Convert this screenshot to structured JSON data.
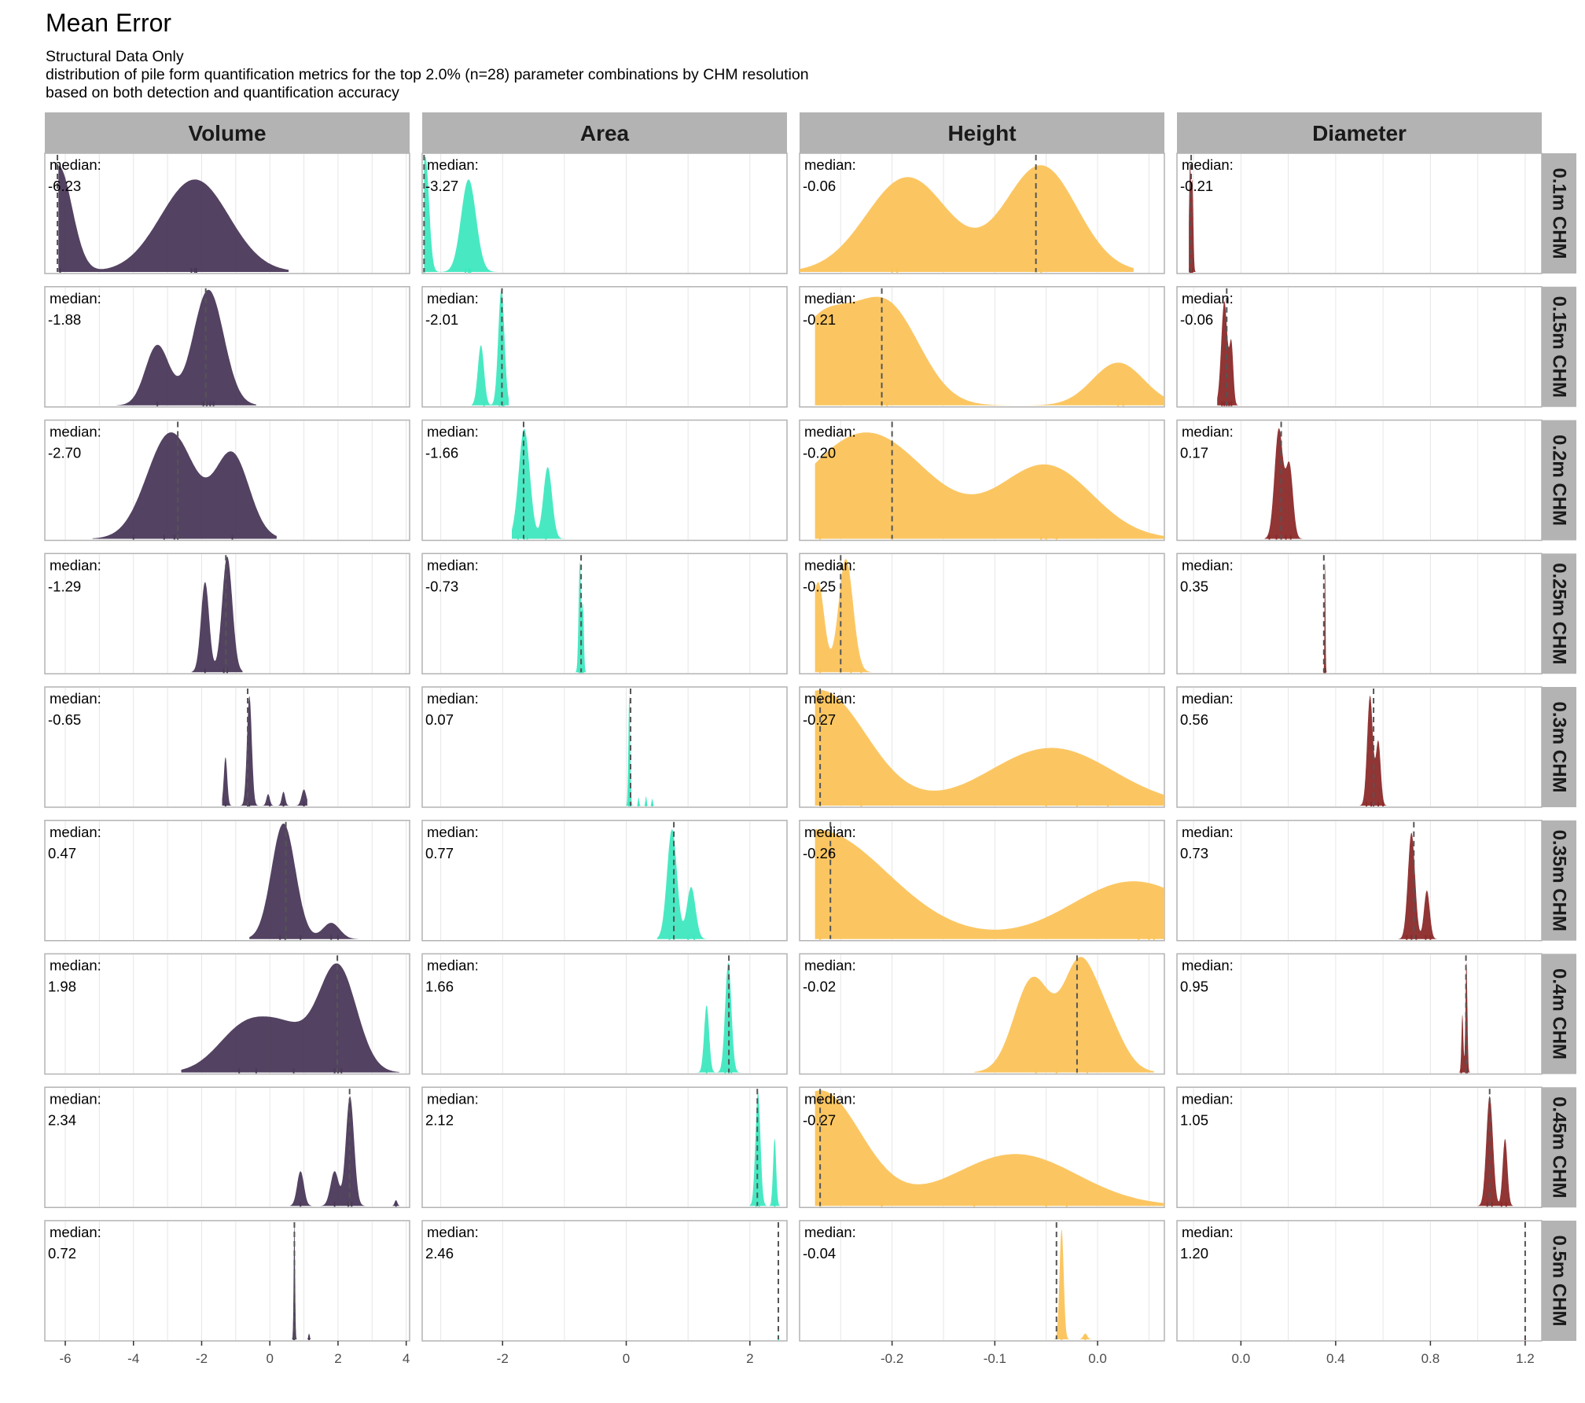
{
  "title": "Mean Error",
  "subtitle_lines": [
    "Structural Data Only",
    "distribution of pile form quantification metrics for the top 2.0% (n=28) parameter combinations by CHM resolution",
    "based on both detection and quantification accuracy"
  ],
  "median_prefix": "median:",
  "chart_data": {
    "type": "density-facet-grid",
    "columns": [
      {
        "name": "Volume",
        "color": "#4a3858",
        "xlim": [
          -6.6,
          4.1
        ],
        "ticks": [
          -6,
          -4,
          -2,
          0,
          2,
          4
        ],
        "tick_labels": [
          "-6",
          "-4",
          "-2",
          "0",
          "2",
          "4"
        ]
      },
      {
        "name": "Area",
        "color": "#3ee8bf",
        "xlim": [
          -3.3,
          2.6
        ],
        "ticks": [
          -2,
          0,
          2
        ],
        "tick_labels": [
          "-2",
          "0",
          "2"
        ]
      },
      {
        "name": "Height",
        "color": "#fbc35a",
        "xlim": [
          -0.29,
          0.065
        ],
        "ticks": [
          -0.2,
          -0.1,
          0.0
        ],
        "tick_labels": [
          "-0.2",
          "-0.1",
          "0.0"
        ]
      },
      {
        "name": "Diameter",
        "color": "#8b2a2a",
        "xlim": [
          -0.27,
          1.27
        ],
        "ticks": [
          0.0,
          0.4,
          0.8,
          1.2
        ],
        "tick_labels": [
          "0.0",
          "0.4",
          "0.8",
          "1.2"
        ]
      }
    ],
    "rows": [
      "0.1m CHM",
      "0.15m CHM",
      "0.2m CHM",
      "0.25m CHM",
      "0.3m CHM",
      "0.35m CHM",
      "0.4m CHM",
      "0.45m CHM",
      "0.5m CHM"
    ],
    "cells": [
      [
        {
          "median": -6.23,
          "median_label": "-6.23",
          "range": [
            -6.2,
            0.55
          ],
          "peaks": [
            [
              -6.2,
              0.4,
              0.92
            ],
            [
              -2.2,
              1.0,
              0.8
            ]
          ],
          "rug": [
            -6.15,
            -2.3,
            -2.2,
            -2.15
          ]
        },
        {
          "median": -3.27,
          "median_label": "-3.27",
          "range": [
            -3.27,
            -2.0
          ],
          "peaks": [
            [
              -3.25,
              0.06,
              1.0
            ],
            [
              -2.55,
              0.12,
              0.8
            ]
          ],
          "rug": [
            -3.27,
            -2.6,
            -2.55,
            -2.52
          ]
        },
        {
          "median": -0.06,
          "median_label": "-0.06",
          "range": [
            -0.29,
            0.035
          ],
          "peaks": [
            [
              -0.185,
              0.04,
              0.82
            ],
            [
              -0.055,
              0.035,
              0.92
            ]
          ],
          "rug": [
            -0.2,
            -0.195,
            -0.06,
            -0.055
          ]
        },
        {
          "median": -0.21,
          "median_label": "-0.21",
          "range": [
            -0.22,
            -0.19
          ],
          "peaks": [
            [
              -0.215,
              0.004,
              0.9
            ],
            [
              -0.205,
              0.004,
              0.75
            ]
          ],
          "rug": [
            -0.215,
            -0.21,
            -0.205
          ]
        }
      ],
      [
        {
          "median": -1.88,
          "median_label": "-1.88",
          "range": [
            -4.5,
            -0.4
          ],
          "peaks": [
            [
              -3.3,
              0.35,
              0.52
            ],
            [
              -1.8,
              0.45,
              1.0
            ]
          ],
          "rug": [
            -3.3,
            -1.95,
            -1.85,
            -1.75,
            -1.65
          ]
        },
        {
          "median": -2.01,
          "median_label": "-2.01",
          "range": [
            -2.5,
            -1.9
          ],
          "peaks": [
            [
              -2.35,
              0.05,
              0.52
            ],
            [
              -2.02,
              0.05,
              1.0
            ]
          ],
          "rug": [
            -2.3,
            -2.05,
            -2.0,
            -1.98
          ]
        },
        {
          "median": -0.21,
          "median_label": "-0.21",
          "range": [
            -0.275,
            0.065
          ],
          "peaks": [
            [
              -0.27,
              0.03,
              0.7
            ],
            [
              -0.205,
              0.032,
              0.85
            ],
            [
              0.02,
              0.025,
              0.37
            ]
          ],
          "rug": [
            -0.21,
            -0.205,
            0.02,
            0.025
          ]
        },
        {
          "median": -0.06,
          "median_label": "-0.06",
          "range": [
            -0.1,
            0.0
          ],
          "peaks": [
            [
              -0.07,
              0.013,
              0.9
            ],
            [
              -0.04,
              0.008,
              0.5
            ]
          ],
          "rug": [
            -0.08,
            -0.07,
            -0.06,
            -0.05,
            -0.04
          ]
        }
      ],
      [
        {
          "median": -2.7,
          "median_label": "-2.70",
          "range": [
            -5.2,
            0.2
          ],
          "peaks": [
            [
              -2.9,
              0.7,
              0.92
            ],
            [
              -1.1,
              0.5,
              0.72
            ]
          ],
          "rug": [
            -4.0,
            -3.1,
            -2.8,
            -2.7,
            -1.1
          ]
        },
        {
          "median": -1.66,
          "median_label": "-1.66",
          "range": [
            -1.85,
            -1.0
          ],
          "peaks": [
            [
              -1.65,
              0.09,
              0.95
            ],
            [
              -1.27,
              0.07,
              0.62
            ]
          ],
          "rug": [
            -1.75,
            -1.65,
            -1.6,
            -1.3
          ]
        },
        {
          "median": -0.2,
          "median_label": "-0.20",
          "range": [
            -0.275,
            0.065
          ],
          "peaks": [
            [
              -0.225,
              0.06,
              0.92
            ],
            [
              -0.05,
              0.045,
              0.63
            ]
          ],
          "rug": [
            -0.27,
            -0.2,
            -0.055,
            -0.05,
            -0.04
          ]
        },
        {
          "median": 0.17,
          "median_label": "0.17",
          "range": [
            0.1,
            0.26
          ],
          "peaks": [
            [
              0.16,
              0.018,
              0.95
            ],
            [
              0.205,
              0.015,
              0.62
            ]
          ],
          "rug": [
            0.12,
            0.15,
            0.17,
            0.19,
            0.21
          ]
        }
      ],
      [
        {
          "median": -1.29,
          "median_label": "-1.29",
          "range": [
            -2.3,
            -0.8
          ],
          "peaks": [
            [
              -1.9,
              0.12,
              0.78
            ],
            [
              -1.25,
              0.15,
              1.0
            ]
          ],
          "rug": [
            -1.9,
            -1.35,
            -1.25
          ]
        },
        {
          "median": -0.73,
          "median_label": "-0.73",
          "range": [
            -0.83,
            -0.65
          ],
          "peaks": [
            [
              -0.75,
              0.02,
              0.95
            ],
            [
              -0.7,
              0.015,
              0.55
            ]
          ],
          "rug": [
            -0.76,
            -0.73,
            -0.7
          ]
        },
        {
          "median": -0.25,
          "median_label": "-0.25",
          "range": [
            -0.275,
            -0.22
          ],
          "peaks": [
            [
              -0.272,
              0.006,
              0.78
            ],
            [
              -0.245,
              0.007,
              0.98
            ]
          ],
          "rug": [
            -0.27,
            -0.25,
            -0.24,
            -0.23
          ]
        },
        {
          "median": 0.35,
          "median_label": "0.35",
          "range": [
            0.345,
            0.37
          ],
          "peaks": [
            [
              0.355,
              0.002,
              0.95
            ]
          ],
          "rug": [
            0.352,
            0.356
          ]
        }
      ],
      [
        {
          "median": -0.65,
          "median_label": "-0.65",
          "range": [
            -1.4,
            1.1
          ],
          "peaks": [
            [
              -1.3,
              0.05,
              0.42
            ],
            [
              -0.6,
              0.07,
              0.95
            ],
            [
              -0.05,
              0.05,
              0.1
            ],
            [
              0.4,
              0.05,
              0.12
            ],
            [
              1.0,
              0.07,
              0.14
            ]
          ],
          "rug": [
            -1.3,
            -0.65,
            -0.6,
            0.0,
            0.4,
            1.0
          ]
        },
        {
          "median": 0.07,
          "median_label": "0.07",
          "range": [
            0.0,
            0.48
          ],
          "peaks": [
            [
              0.05,
              0.015,
              0.95
            ],
            [
              0.2,
              0.01,
              0.07
            ],
            [
              0.32,
              0.01,
              0.08
            ],
            [
              0.42,
              0.01,
              0.06
            ]
          ],
          "rug": [
            0.04,
            0.07,
            0.2,
            0.32,
            0.42
          ]
        },
        {
          "median": -0.27,
          "median_label": "-0.27",
          "range": [
            -0.275,
            0.065
          ],
          "peaks": [
            [
              -0.27,
              0.045,
              1.0
            ],
            [
              -0.045,
              0.06,
              0.5
            ]
          ],
          "rug": [
            -0.27,
            -0.23,
            -0.05,
            -0.02,
            0.01
          ]
        },
        {
          "median": 0.56,
          "median_label": "0.56",
          "range": [
            0.5,
            0.65
          ],
          "peaks": [
            [
              0.545,
              0.012,
              0.95
            ],
            [
              0.58,
              0.01,
              0.55
            ]
          ],
          "rug": [
            0.53,
            0.55,
            0.56,
            0.58,
            0.6
          ]
        }
      ],
      [
        {
          "median": 0.47,
          "median_label": "0.47",
          "range": [
            -0.6,
            2.7
          ],
          "peaks": [
            [
              0.4,
              0.35,
              1.0
            ],
            [
              1.8,
              0.25,
              0.14
            ]
          ],
          "rug": [
            0.3,
            0.45,
            0.9,
            1.8,
            2.0
          ]
        },
        {
          "median": 0.77,
          "median_label": "0.77",
          "range": [
            0.5,
            1.3
          ],
          "peaks": [
            [
              0.74,
              0.08,
              0.95
            ],
            [
              1.05,
              0.07,
              0.45
            ]
          ],
          "rug": [
            0.7,
            0.77,
            1.0,
            1.1
          ]
        },
        {
          "median": -0.26,
          "median_label": "-0.26",
          "range": [
            -0.275,
            0.065
          ],
          "peaks": [
            [
              -0.275,
              0.07,
              0.95
            ],
            [
              0.035,
              0.06,
              0.5
            ]
          ],
          "rug": [
            -0.27,
            0.04,
            0.05,
            0.055
          ]
        },
        {
          "median": 0.73,
          "median_label": "0.73",
          "range": [
            0.66,
            0.84
          ],
          "peaks": [
            [
              0.72,
              0.015,
              0.92
            ],
            [
              0.785,
              0.012,
              0.42
            ]
          ],
          "rug": [
            0.7,
            0.72,
            0.74,
            0.78,
            0.8
          ]
        }
      ],
      [
        {
          "median": 1.98,
          "median_label": "1.98",
          "range": [
            -2.6,
            3.8
          ],
          "peaks": [
            [
              -0.7,
              0.8,
              0.4
            ],
            [
              0.6,
              0.7,
              0.3
            ],
            [
              2.0,
              0.55,
              0.9
            ]
          ],
          "rug": [
            -0.9,
            -0.4,
            0.7,
            1.9,
            2.0,
            2.1
          ]
        },
        {
          "median": 1.66,
          "median_label": "1.66",
          "range": [
            1.1,
            1.9
          ],
          "peaks": [
            [
              1.3,
              0.04,
              0.58
            ],
            [
              1.65,
              0.05,
              0.95
            ]
          ],
          "rug": [
            1.3,
            1.6,
            1.66,
            1.7
          ]
        },
        {
          "median": -0.02,
          "median_label": "-0.02",
          "range": [
            -0.12,
            0.055
          ],
          "peaks": [
            [
              -0.063,
              0.018,
              0.92
            ],
            [
              -0.02,
              0.015,
              0.85
            ],
            [
              0.005,
              0.018,
              0.55
            ]
          ],
          "rug": [
            -0.06,
            -0.04,
            -0.02,
            -0.01
          ]
        },
        {
          "median": 0.95,
          "median_label": "0.95",
          "range": [
            0.92,
            0.98
          ],
          "peaks": [
            [
              0.935,
              0.004,
              0.5
            ],
            [
              0.952,
              0.004,
              0.95
            ]
          ],
          "rug": [
            0.93,
            0.95,
            0.955
          ]
        }
      ],
      [
        {
          "median": 2.34,
          "median_label": "2.34",
          "range": [
            0.6,
            3.8
          ],
          "peaks": [
            [
              0.9,
              0.1,
              0.3
            ],
            [
              1.9,
              0.12,
              0.3
            ],
            [
              2.35,
              0.12,
              0.95
            ],
            [
              3.7,
              0.04,
              0.05
            ]
          ],
          "rug": [
            0.9,
            1.9,
            2.3,
            2.4,
            3.7
          ]
        },
        {
          "median": 2.12,
          "median_label": "2.12",
          "range": [
            2.0,
            2.5
          ],
          "peaks": [
            [
              2.13,
              0.04,
              0.98
            ],
            [
              2.4,
              0.025,
              0.58
            ]
          ],
          "rug": [
            2.1,
            2.15,
            2.4
          ]
        },
        {
          "median": -0.27,
          "median_label": "-0.27",
          "range": [
            -0.275,
            0.065
          ],
          "peaks": [
            [
              -0.27,
              0.04,
              1.0
            ],
            [
              -0.08,
              0.06,
              0.45
            ]
          ],
          "rug": [
            -0.27,
            -0.21,
            -0.12,
            -0.05,
            -0.03
          ]
        },
        {
          "median": 1.05,
          "median_label": "1.05",
          "range": [
            1.0,
            1.15
          ],
          "peaks": [
            [
              1.05,
              0.014,
              0.95
            ],
            [
              1.115,
              0.01,
              0.58
            ]
          ],
          "rug": [
            1.04,
            1.06,
            1.1,
            1.12
          ]
        }
      ],
      [
        {
          "median": 0.72,
          "median_label": "0.72",
          "range": [
            0.6,
            1.2
          ],
          "peaks": [
            [
              0.72,
              0.02,
              1.0
            ],
            [
              1.15,
              0.02,
              0.05
            ]
          ],
          "rug": [
            0.7,
            0.72,
            1.15
          ]
        },
        {
          "median": 2.46,
          "median_label": "2.46",
          "range": [
            2.44,
            2.48
          ],
          "peaks": [
            [
              2.46,
              0.005,
              0.05
            ]
          ],
          "rug": [
            2.46
          ]
        },
        {
          "median": -0.04,
          "median_label": "-0.04",
          "range": [
            -0.046,
            -0.005
          ],
          "peaks": [
            [
              -0.035,
              0.002,
              0.95
            ],
            [
              -0.012,
              0.002,
              0.05
            ]
          ],
          "rug": [
            -0.035,
            -0.012
          ]
        },
        {
          "median": 1.2,
          "median_label": "1.20",
          "range": [
            1.19,
            1.21
          ],
          "peaks": [
            [
              1.2,
              0.002,
              0.0
            ]
          ],
          "rug": [
            1.2
          ]
        }
      ]
    ]
  }
}
